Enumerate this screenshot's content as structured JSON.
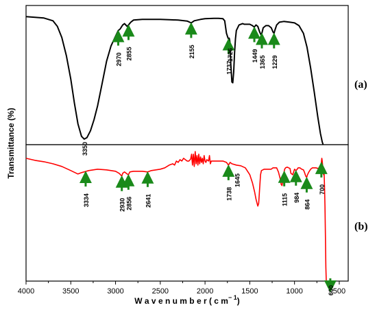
{
  "chart_data": {
    "type": "line",
    "xlabel": "W a v e n u m b e r  ( c m",
    "xlabel_sup": "− 1",
    "xlabel_close": ")",
    "ylabel": "Transmittance (%)",
    "xlim": [
      4000,
      400
    ],
    "x_ticks": [
      "4000",
      "3500",
      "3000",
      "2500",
      "2000",
      "1500",
      "1000",
      "500"
    ],
    "grid": false,
    "panels": [
      {
        "tag": "(a)",
        "color": "#000000",
        "ylim": [
          0,
          100
        ],
        "points": [
          [
            4000,
            92
          ],
          [
            3900,
            91.5
          ],
          [
            3800,
            91
          ],
          [
            3700,
            89
          ],
          [
            3650,
            85
          ],
          [
            3600,
            77
          ],
          [
            3550,
            64
          ],
          [
            3500,
            47
          ],
          [
            3460,
            30
          ],
          [
            3420,
            15
          ],
          [
            3380,
            6
          ],
          [
            3350,
            4
          ],
          [
            3320,
            5
          ],
          [
            3280,
            10
          ],
          [
            3240,
            18
          ],
          [
            3200,
            28
          ],
          [
            3150,
            44
          ],
          [
            3100,
            60
          ],
          [
            3050,
            71
          ],
          [
            3000,
            78
          ],
          [
            2970,
            82
          ],
          [
            2950,
            83
          ],
          [
            2920,
            86
          ],
          [
            2900,
            87
          ],
          [
            2870,
            85
          ],
          [
            2855,
            86
          ],
          [
            2830,
            88
          ],
          [
            2800,
            89.5
          ],
          [
            2700,
            90
          ],
          [
            2600,
            90
          ],
          [
            2500,
            90
          ],
          [
            2400,
            89.8
          ],
          [
            2300,
            89.5
          ],
          [
            2200,
            88.8
          ],
          [
            2155,
            87.5
          ],
          [
            2120,
            89
          ],
          [
            2050,
            90
          ],
          [
            2000,
            90.5
          ],
          [
            1900,
            90.8
          ],
          [
            1850,
            90.8
          ],
          [
            1800,
            90.5
          ],
          [
            1780,
            89
          ],
          [
            1760,
            80
          ],
          [
            1745,
            77
          ],
          [
            1737,
            76
          ],
          [
            1730,
            76.5
          ],
          [
            1728,
            76
          ],
          [
            1722,
            74
          ],
          [
            1712,
            58
          ],
          [
            1700,
            45
          ],
          [
            1690,
            44.5
          ],
          [
            1680,
            52
          ],
          [
            1670,
            66
          ],
          [
            1660,
            76
          ],
          [
            1650,
            82
          ],
          [
            1620,
            86
          ],
          [
            1580,
            87
          ],
          [
            1560,
            86.5
          ],
          [
            1500,
            86.5
          ],
          [
            1470,
            85.5
          ],
          [
            1449,
            84.5
          ],
          [
            1430,
            86
          ],
          [
            1410,
            85
          ],
          [
            1390,
            81
          ],
          [
            1375,
            79
          ],
          [
            1365,
            80
          ],
          [
            1350,
            84
          ],
          [
            1320,
            85.5
          ],
          [
            1290,
            85.5
          ],
          [
            1260,
            84
          ],
          [
            1240,
            81
          ],
          [
            1229,
            80
          ],
          [
            1220,
            82
          ],
          [
            1200,
            86
          ],
          [
            1170,
            88
          ],
          [
            1120,
            88.5
          ],
          [
            1050,
            88
          ],
          [
            1000,
            87.5
          ],
          [
            950,
            85.5
          ],
          [
            900,
            80
          ],
          [
            860,
            70
          ],
          [
            820,
            55
          ],
          [
            780,
            38
          ],
          [
            740,
            20
          ],
          [
            710,
            8
          ],
          [
            690,
            2
          ],
          [
            680,
            0
          ]
        ],
        "peaks": [
          {
            "x": 2970,
            "label": "2970"
          },
          {
            "x": 2855,
            "label": "2855"
          },
          {
            "x": 2155,
            "label": "2155"
          },
          {
            "x": 1737,
            "label": "1737"
          },
          {
            "x": 1449,
            "label": "1449"
          },
          {
            "x": 1365,
            "label": "1365"
          },
          {
            "x": 1229,
            "label": "1229"
          }
        ],
        "text_labels": [
          {
            "x": 3350,
            "label": "3350"
          },
          {
            "x": 1726,
            "label": "1726"
          }
        ]
      },
      {
        "tag": "(b)",
        "color": "#ff0000",
        "ylim": [
          0,
          100
        ],
        "points": [
          [
            4000,
            90
          ],
          [
            3900,
            88.5
          ],
          [
            3800,
            87.5
          ],
          [
            3700,
            86
          ],
          [
            3600,
            84
          ],
          [
            3500,
            81
          ],
          [
            3420,
            78.5
          ],
          [
            3380,
            79.5
          ],
          [
            3300,
            81
          ],
          [
            3200,
            82
          ],
          [
            3100,
            81.5
          ],
          [
            3000,
            80.5
          ],
          [
            2960,
            79
          ],
          [
            2930,
            77
          ],
          [
            2920,
            79
          ],
          [
            2900,
            80
          ],
          [
            2870,
            78.5
          ],
          [
            2856,
            78
          ],
          [
            2840,
            80
          ],
          [
            2800,
            80.5
          ],
          [
            2700,
            80.5
          ],
          [
            2641,
            80
          ],
          [
            2600,
            81
          ],
          [
            2500,
            82
          ],
          [
            2450,
            83
          ],
          [
            2400,
            85
          ],
          [
            2360,
            86
          ],
          [
            2340,
            85
          ],
          [
            2320,
            88
          ],
          [
            2300,
            87
          ],
          [
            2280,
            89
          ],
          [
            2260,
            88
          ],
          [
            2240,
            90
          ],
          [
            2220,
            89
          ],
          [
            2200,
            88
          ],
          [
            2180,
            88
          ],
          [
            2160,
            89.5
          ],
          [
            2150,
            93
          ],
          [
            2140,
            85
          ],
          [
            2130,
            93
          ],
          [
            2120,
            84
          ],
          [
            2110,
            95
          ],
          [
            2100,
            86
          ],
          [
            2090,
            92
          ],
          [
            2080,
            85
          ],
          [
            2070,
            93
          ],
          [
            2060,
            86
          ],
          [
            2050,
            91
          ],
          [
            2040,
            87
          ],
          [
            2030,
            90
          ],
          [
            2020,
            86
          ],
          [
            2010,
            92
          ],
          [
            2000,
            88
          ],
          [
            1990,
            87
          ],
          [
            1980,
            89
          ],
          [
            1960,
            88
          ],
          [
            1950,
            92
          ],
          [
            1940,
            86
          ],
          [
            1930,
            88
          ],
          [
            1900,
            88
          ],
          [
            1850,
            88
          ],
          [
            1800,
            88
          ],
          [
            1760,
            87
          ],
          [
            1738,
            85
          ],
          [
            1720,
            87
          ],
          [
            1700,
            86
          ],
          [
            1650,
            85
          ],
          [
            1600,
            84.5
          ],
          [
            1550,
            83
          ],
          [
            1500,
            78
          ],
          [
            1470,
            72
          ],
          [
            1445,
            65
          ],
          [
            1430,
            60
          ],
          [
            1410,
            55
          ],
          [
            1400,
            57
          ],
          [
            1390,
            68
          ],
          [
            1380,
            78
          ],
          [
            1370,
            81
          ],
          [
            1340,
            82
          ],
          [
            1300,
            82
          ],
          [
            1260,
            82
          ],
          [
            1240,
            83
          ],
          [
            1220,
            83
          ],
          [
            1200,
            83
          ],
          [
            1180,
            80
          ],
          [
            1160,
            75
          ],
          [
            1150,
            71
          ],
          [
            1140,
            70
          ],
          [
            1130,
            74
          ],
          [
            1120,
            79
          ],
          [
            1110,
            82
          ],
          [
            1100,
            83
          ],
          [
            1080,
            83.5
          ],
          [
            1050,
            82.5
          ],
          [
            1040,
            79
          ],
          [
            1020,
            78
          ],
          [
            1010,
            80
          ],
          [
            1000,
            82
          ],
          [
            984,
            81
          ],
          [
            970,
            82
          ],
          [
            960,
            83
          ],
          [
            940,
            83
          ],
          [
            920,
            82
          ],
          [
            900,
            81.5
          ],
          [
            890,
            80
          ],
          [
            875,
            77
          ],
          [
            864,
            76
          ],
          [
            855,
            78
          ],
          [
            840,
            80
          ],
          [
            820,
            82
          ],
          [
            800,
            83
          ],
          [
            780,
            83
          ],
          [
            760,
            83
          ],
          [
            740,
            82.5
          ],
          [
            720,
            83
          ],
          [
            710,
            84
          ],
          [
            700,
            87
          ],
          [
            695,
            90
          ],
          [
            690,
            88
          ],
          [
            685,
            84
          ],
          [
            680,
            80
          ],
          [
            675,
            78
          ],
          [
            670,
            80
          ],
          [
            665,
            70
          ],
          [
            660,
            55
          ],
          [
            655,
            35
          ],
          [
            650,
            10
          ],
          [
            645,
            0
          ]
        ],
        "peaks": [
          {
            "x": 3334,
            "label": "3334"
          },
          {
            "x": 2930,
            "label": "2930"
          },
          {
            "x": 2856,
            "label": "2856"
          },
          {
            "x": 2641,
            "label": "2641"
          },
          {
            "x": 1738,
            "label": "1738"
          },
          {
            "x": 1115,
            "label": "1115"
          },
          {
            "x": 984,
            "label": "984"
          },
          {
            "x": 864,
            "label": "864"
          },
          {
            "x": 700,
            "label": "700"
          },
          {
            "x": 600,
            "label": "600"
          }
        ],
        "text_labels": [
          {
            "x": 1645,
            "label": "1645"
          }
        ]
      }
    ]
  }
}
